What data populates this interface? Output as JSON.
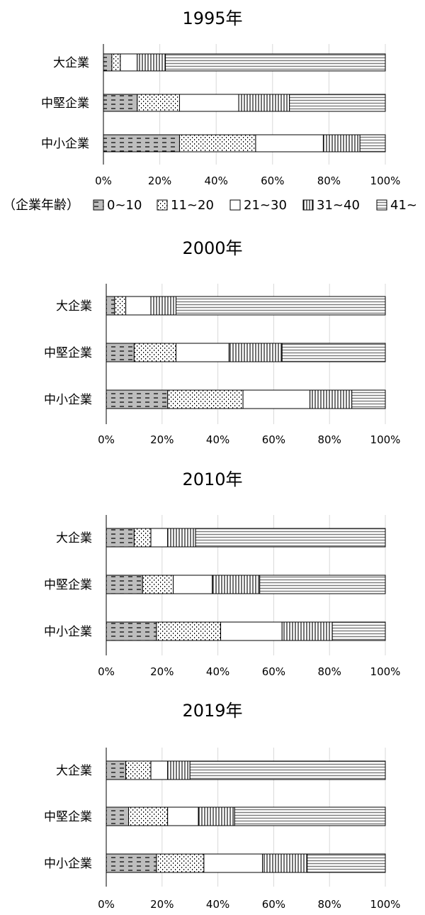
{
  "legend": {
    "caption": "（企業年齢）",
    "items": [
      "0~10",
      "11~20",
      "21~30",
      "31~40",
      "41~"
    ]
  },
  "chart_data": [
    {
      "type": "bar",
      "orientation": "horizontal",
      "stacked": "percent",
      "title": "1995年",
      "categories": [
        "大企業",
        "中堅企業",
        "中小企業"
      ],
      "series": [
        {
          "name": "0~10",
          "values": [
            3,
            12,
            27
          ]
        },
        {
          "name": "11~20",
          "values": [
            3,
            15,
            27
          ]
        },
        {
          "name": "21~30",
          "values": [
            6,
            21,
            24
          ]
        },
        {
          "name": "31~40",
          "values": [
            10,
            18,
            13
          ]
        },
        {
          "name": "41~",
          "values": [
            78,
            34,
            9
          ]
        }
      ],
      "xlim": [
        0,
        100
      ],
      "xticks": [
        "0%",
        "20%",
        "40%",
        "60%",
        "80%",
        "100%"
      ],
      "grid": true
    },
    {
      "type": "bar",
      "orientation": "horizontal",
      "stacked": "percent",
      "title": "2000年",
      "categories": [
        "大企業",
        "中堅企業",
        "中小企業"
      ],
      "series": [
        {
          "name": "0~10",
          "values": [
            3,
            10,
            22
          ]
        },
        {
          "name": "11~20",
          "values": [
            4,
            15,
            27
          ]
        },
        {
          "name": "21~30",
          "values": [
            9,
            19,
            24
          ]
        },
        {
          "name": "31~40",
          "values": [
            9,
            19,
            15
          ]
        },
        {
          "name": "41~",
          "values": [
            75,
            37,
            12
          ]
        }
      ],
      "xlim": [
        0,
        100
      ],
      "xticks": [
        "0%",
        "20%",
        "40%",
        "60%",
        "80%",
        "100%"
      ],
      "grid": true
    },
    {
      "type": "bar",
      "orientation": "horizontal",
      "stacked": "percent",
      "title": "2010年",
      "categories": [
        "大企業",
        "中堅企業",
        "中小企業"
      ],
      "series": [
        {
          "name": "0~10",
          "values": [
            10,
            13,
            18
          ]
        },
        {
          "name": "11~20",
          "values": [
            6,
            11,
            23
          ]
        },
        {
          "name": "21~30",
          "values": [
            6,
            14,
            22
          ]
        },
        {
          "name": "31~40",
          "values": [
            10,
            17,
            18
          ]
        },
        {
          "name": "41~",
          "values": [
            68,
            45,
            19
          ]
        }
      ],
      "xlim": [
        0,
        100
      ],
      "xticks": [
        "0%",
        "20%",
        "40%",
        "60%",
        "80%",
        "100%"
      ],
      "grid": true
    },
    {
      "type": "bar",
      "orientation": "horizontal",
      "stacked": "percent",
      "title": "2019年",
      "categories": [
        "大企業",
        "中堅企業",
        "中小企業"
      ],
      "series": [
        {
          "name": "0~10",
          "values": [
            7,
            8,
            18
          ]
        },
        {
          "name": "11~20",
          "values": [
            9,
            14,
            17
          ]
        },
        {
          "name": "21~30",
          "values": [
            6,
            11,
            21
          ]
        },
        {
          "name": "31~40",
          "values": [
            8,
            13,
            16
          ]
        },
        {
          "name": "41~",
          "values": [
            70,
            54,
            28
          ]
        }
      ],
      "xlim": [
        0,
        100
      ],
      "xticks": [
        "0%",
        "20%",
        "40%",
        "60%",
        "80%",
        "100%"
      ],
      "grid": true
    }
  ]
}
